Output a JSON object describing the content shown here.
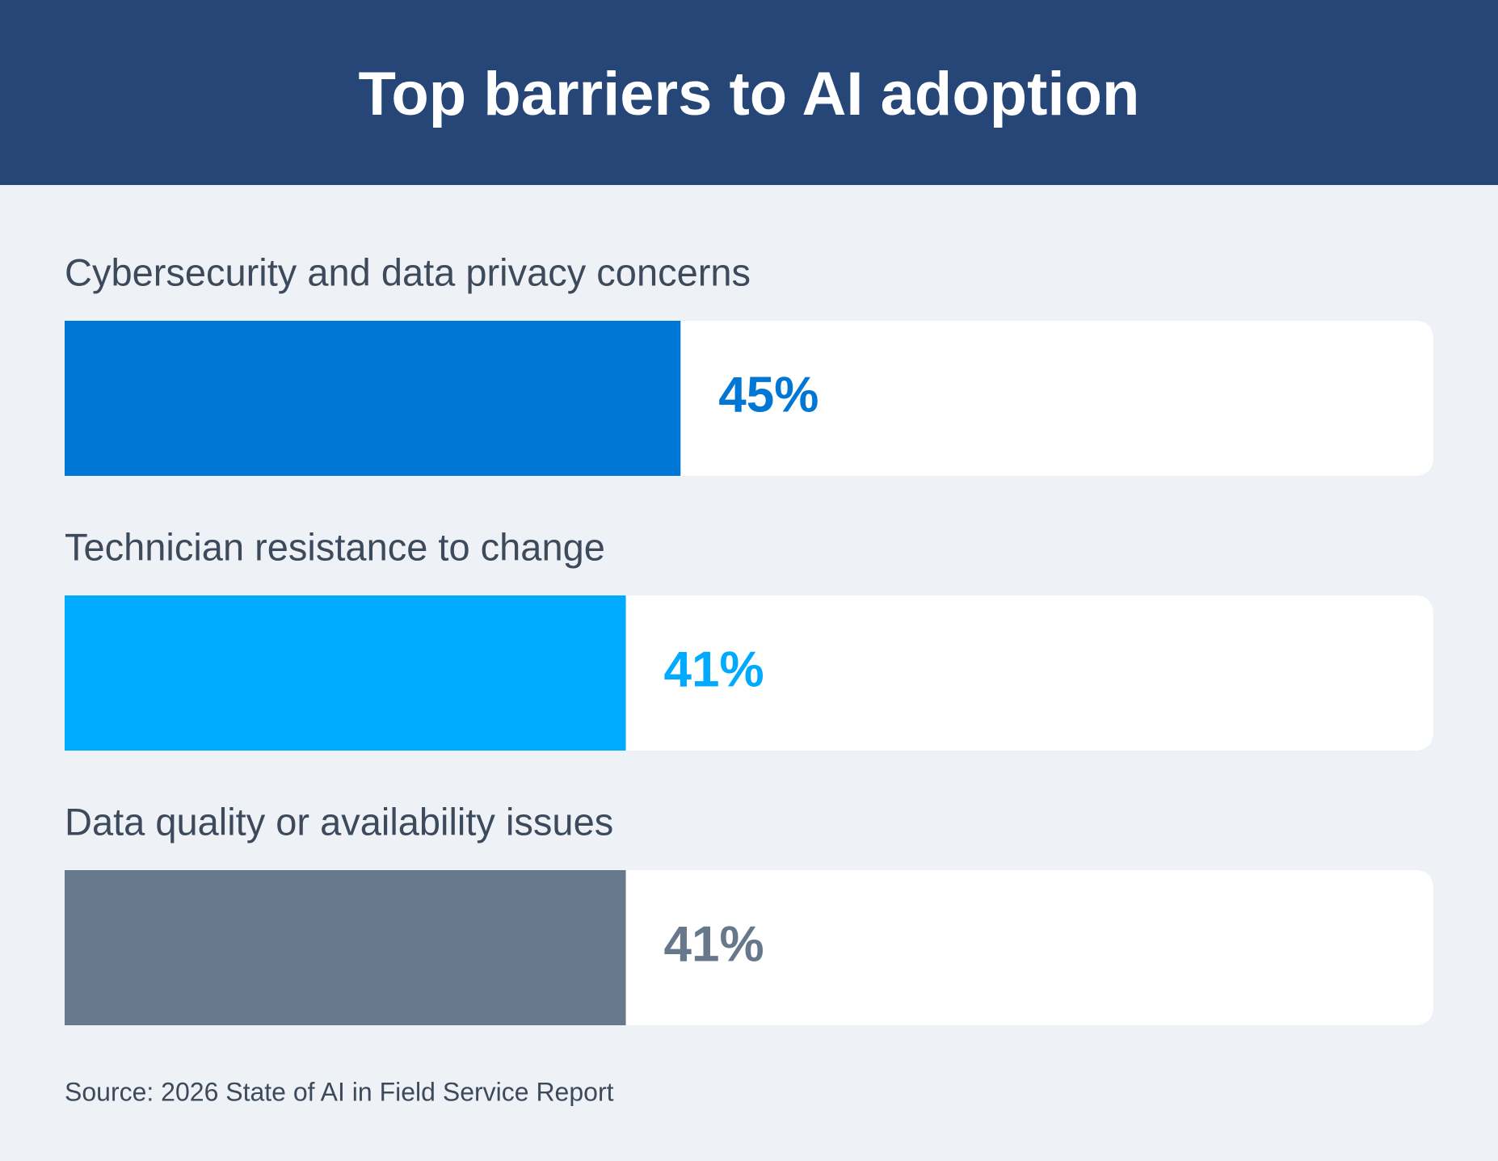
{
  "chart_data": {
    "type": "bar",
    "orientation": "horizontal",
    "title": "Top barriers to AI adoption",
    "categories": [
      "Cybersecurity and data privacy concerns",
      "Technician resistance to change",
      "Data quality or availability issues"
    ],
    "values": [
      45,
      41,
      41
    ],
    "value_labels": [
      "45%",
      "41%",
      "41%"
    ],
    "colors": [
      "#0077d4",
      "#00aaff",
      "#67788c"
    ],
    "xlim": [
      0,
      100
    ],
    "source": "Source: 2026 State of AI in Field Service Report"
  }
}
